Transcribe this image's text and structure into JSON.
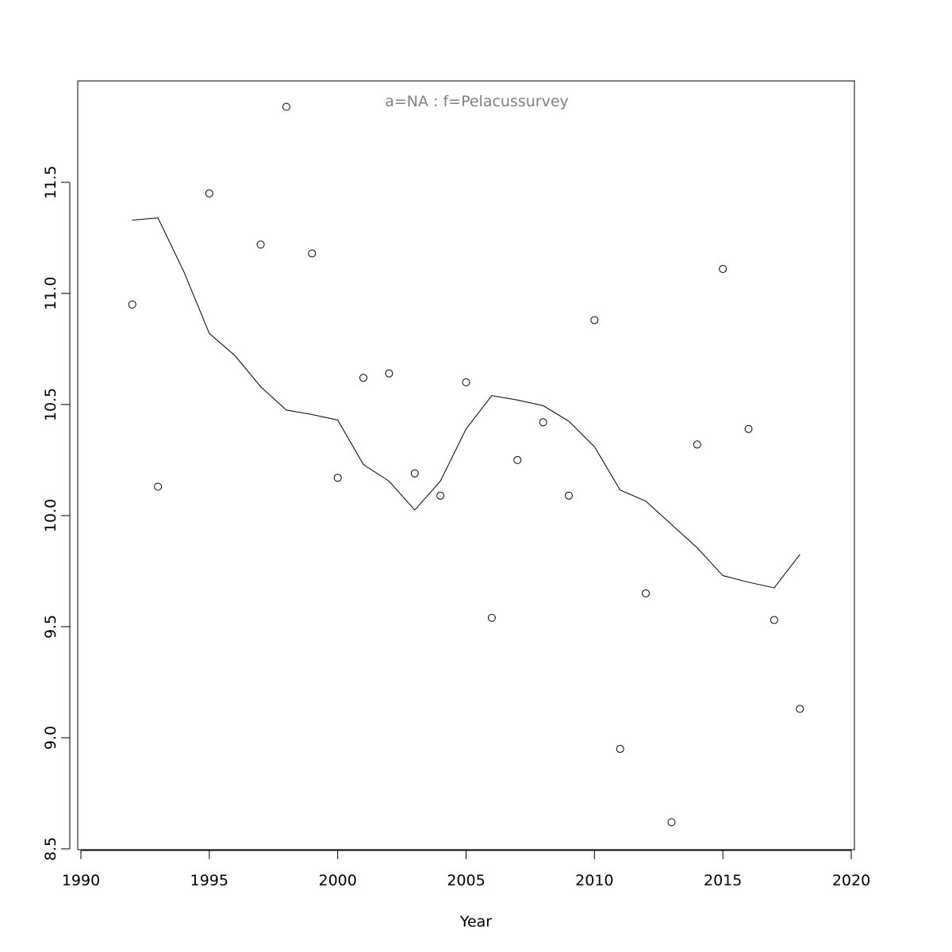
{
  "chart_data": {
    "type": "scatter",
    "title": "a=NA  :  f=Pelacussurvey",
    "xlabel": "Year",
    "ylabel": "",
    "xlim": [
      1990,
      2020
    ],
    "ylim": [
      8.5,
      11.96
    ],
    "x_ticks": [
      1990,
      1995,
      2000,
      2005,
      2010,
      2015,
      2020
    ],
    "y_ticks": [
      8.5,
      9.0,
      9.5,
      10.0,
      10.5,
      11.0,
      11.5
    ],
    "x_tick_labels": [
      "1990",
      "1995",
      "2000",
      "2005",
      "2010",
      "2015",
      "2020"
    ],
    "y_tick_labels": [
      "8.5",
      "9.0",
      "9.5",
      "10.0",
      "10.5",
      "11.0",
      "11.5"
    ],
    "grid": false,
    "legend": "none",
    "colors": {
      "points": "#000000",
      "line": "#000000",
      "title": "#808080"
    },
    "series": [
      {
        "type": "scatter",
        "points": [
          {
            "x": 1992,
            "y": 10.95
          },
          {
            "x": 1993,
            "y": 10.13
          },
          {
            "x": 1995,
            "y": 11.45
          },
          {
            "x": 1997,
            "y": 11.22
          },
          {
            "x": 1998,
            "y": 11.84
          },
          {
            "x": 1999,
            "y": 11.18
          },
          {
            "x": 2000,
            "y": 10.17
          },
          {
            "x": 2001,
            "y": 10.62
          },
          {
            "x": 2002,
            "y": 10.64
          },
          {
            "x": 2003,
            "y": 10.19
          },
          {
            "x": 2004,
            "y": 10.09
          },
          {
            "x": 2005,
            "y": 10.6
          },
          {
            "x": 2006,
            "y": 9.54
          },
          {
            "x": 2007,
            "y": 10.25
          },
          {
            "x": 2008,
            "y": 10.42
          },
          {
            "x": 2009,
            "y": 10.09
          },
          {
            "x": 2010,
            "y": 10.88
          },
          {
            "x": 2011,
            "y": 8.95
          },
          {
            "x": 2012,
            "y": 9.65
          },
          {
            "x": 2013,
            "y": 8.62
          },
          {
            "x": 2014,
            "y": 10.32
          },
          {
            "x": 2015,
            "y": 11.11
          },
          {
            "x": 2016,
            "y": 10.39
          },
          {
            "x": 2017,
            "y": 9.53
          },
          {
            "x": 2018,
            "y": 9.13
          }
        ]
      },
      {
        "type": "line",
        "points": [
          {
            "x": 1992,
            "y": 11.33
          },
          {
            "x": 1993,
            "y": 11.34
          },
          {
            "x": 1994,
            "y": 11.1
          },
          {
            "x": 1995,
            "y": 10.82
          },
          {
            "x": 1996,
            "y": 10.72
          },
          {
            "x": 1997,
            "y": 10.58
          },
          {
            "x": 1998,
            "y": 10.475
          },
          {
            "x": 1999,
            "y": 10.455
          },
          {
            "x": 2000,
            "y": 10.43
          },
          {
            "x": 2001,
            "y": 10.23
          },
          {
            "x": 2002,
            "y": 10.155
          },
          {
            "x": 2003,
            "y": 10.025
          },
          {
            "x": 2004,
            "y": 10.155
          },
          {
            "x": 2005,
            "y": 10.39
          },
          {
            "x": 2006,
            "y": 10.54
          },
          {
            "x": 2007,
            "y": 10.52
          },
          {
            "x": 2008,
            "y": 10.495
          },
          {
            "x": 2009,
            "y": 10.425
          },
          {
            "x": 2010,
            "y": 10.31
          },
          {
            "x": 2011,
            "y": 10.115
          },
          {
            "x": 2012,
            "y": 10.065
          },
          {
            "x": 2013,
            "y": 9.96
          },
          {
            "x": 2014,
            "y": 9.855
          },
          {
            "x": 2015,
            "y": 9.73
          },
          {
            "x": 2016,
            "y": 9.7
          },
          {
            "x": 2017,
            "y": 9.675
          },
          {
            "x": 2018,
            "y": 9.825
          }
        ]
      }
    ]
  }
}
